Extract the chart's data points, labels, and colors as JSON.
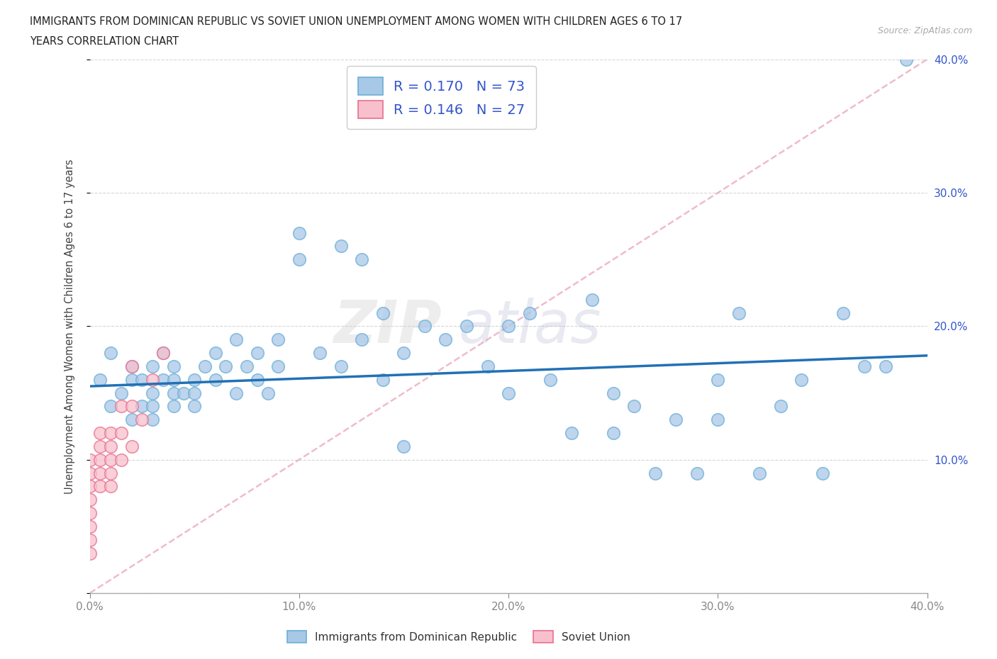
{
  "title_line1": "IMMIGRANTS FROM DOMINICAN REPUBLIC VS SOVIET UNION UNEMPLOYMENT AMONG WOMEN WITH CHILDREN AGES 6 TO 17",
  "title_line2": "YEARS CORRELATION CHART",
  "source": "Source: ZipAtlas.com",
  "ylabel": "Unemployment Among Women with Children Ages 6 to 17 years",
  "xlim": [
    0.0,
    0.4
  ],
  "ylim": [
    0.0,
    0.4
  ],
  "xticks": [
    0.0,
    0.1,
    0.2,
    0.3,
    0.4
  ],
  "yticks": [
    0.0,
    0.1,
    0.2,
    0.3,
    0.4
  ],
  "xticklabels": [
    "0.0%",
    "10.0%",
    "20.0%",
    "30.0%",
    "40.0%"
  ],
  "yticklabels_right": [
    "",
    "10.0%",
    "20.0%",
    "30.0%",
    "40.0%"
  ],
  "blue_R": 0.17,
  "blue_N": 73,
  "pink_R": 0.146,
  "pink_N": 27,
  "blue_color": "#a8c8e8",
  "blue_edge_color": "#6baed6",
  "pink_color": "#f7c0cc",
  "pink_edge_color": "#e87090",
  "blue_line_color": "#2171b5",
  "pink_line_color": "#e8a0b0",
  "watermark_zip": "ZIP",
  "watermark_atlas": "atlas",
  "legend_label_blue": "Immigrants from Dominican Republic",
  "legend_label_pink": "Soviet Union",
  "blue_scatter_x": [
    0.005,
    0.01,
    0.01,
    0.015,
    0.02,
    0.02,
    0.02,
    0.025,
    0.025,
    0.03,
    0.03,
    0.03,
    0.03,
    0.035,
    0.035,
    0.04,
    0.04,
    0.04,
    0.04,
    0.045,
    0.05,
    0.05,
    0.05,
    0.055,
    0.06,
    0.06,
    0.065,
    0.07,
    0.07,
    0.075,
    0.08,
    0.08,
    0.085,
    0.09,
    0.09,
    0.1,
    0.1,
    0.11,
    0.12,
    0.12,
    0.13,
    0.13,
    0.14,
    0.14,
    0.15,
    0.15,
    0.16,
    0.17,
    0.18,
    0.19,
    0.2,
    0.2,
    0.21,
    0.22,
    0.23,
    0.24,
    0.25,
    0.25,
    0.26,
    0.27,
    0.28,
    0.29,
    0.3,
    0.3,
    0.31,
    0.32,
    0.33,
    0.34,
    0.35,
    0.36,
    0.37,
    0.38,
    0.39
  ],
  "blue_scatter_y": [
    0.16,
    0.18,
    0.14,
    0.15,
    0.17,
    0.13,
    0.16,
    0.14,
    0.16,
    0.15,
    0.14,
    0.17,
    0.13,
    0.16,
    0.18,
    0.15,
    0.14,
    0.16,
    0.17,
    0.15,
    0.16,
    0.14,
    0.15,
    0.17,
    0.18,
    0.16,
    0.17,
    0.19,
    0.15,
    0.17,
    0.18,
    0.16,
    0.15,
    0.17,
    0.19,
    0.25,
    0.27,
    0.18,
    0.26,
    0.17,
    0.19,
    0.25,
    0.21,
    0.16,
    0.18,
    0.11,
    0.2,
    0.19,
    0.2,
    0.17,
    0.15,
    0.2,
    0.21,
    0.16,
    0.12,
    0.22,
    0.12,
    0.15,
    0.14,
    0.09,
    0.13,
    0.09,
    0.16,
    0.13,
    0.21,
    0.09,
    0.14,
    0.16,
    0.09,
    0.21,
    0.17,
    0.17,
    0.4
  ],
  "pink_scatter_x": [
    0.0,
    0.0,
    0.0,
    0.0,
    0.0,
    0.0,
    0.0,
    0.0,
    0.005,
    0.005,
    0.005,
    0.005,
    0.005,
    0.01,
    0.01,
    0.01,
    0.01,
    0.01,
    0.015,
    0.015,
    0.015,
    0.02,
    0.02,
    0.02,
    0.025,
    0.03,
    0.035
  ],
  "pink_scatter_y": [
    0.03,
    0.04,
    0.05,
    0.06,
    0.07,
    0.08,
    0.09,
    0.1,
    0.08,
    0.09,
    0.1,
    0.11,
    0.12,
    0.08,
    0.09,
    0.1,
    0.11,
    0.12,
    0.1,
    0.12,
    0.14,
    0.11,
    0.14,
    0.17,
    0.13,
    0.16,
    0.18
  ],
  "blue_trend_y_start": 0.155,
  "blue_trend_y_end": 0.178,
  "diag_line_x": [
    0.0,
    0.4
  ],
  "diag_line_y": [
    0.0,
    0.4
  ]
}
